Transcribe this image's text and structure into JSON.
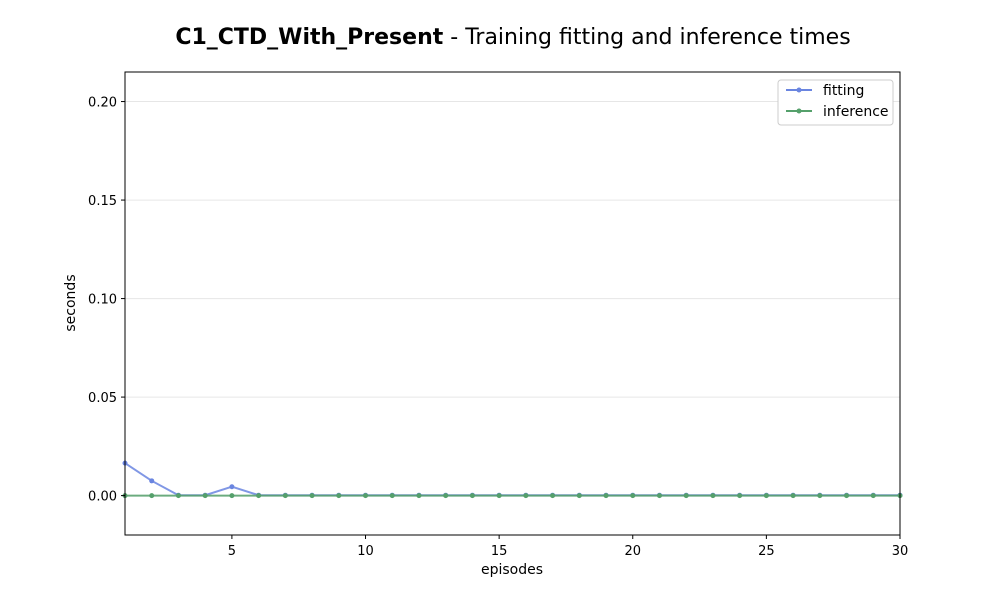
{
  "chart_data": {
    "type": "line",
    "title_bold": "C1_CTD_With_Present",
    "title_rest": " - Training fitting and inference times",
    "xlabel": "episodes",
    "ylabel": "seconds",
    "xlim": [
      1,
      30
    ],
    "ylim": [
      -0.02,
      0.215
    ],
    "xticks": [
      5,
      10,
      15,
      20,
      25,
      30
    ],
    "yticks": [
      0.0,
      0.05,
      0.1,
      0.15,
      0.2
    ],
    "ytick_labels": [
      "0.00",
      "0.05",
      "0.10",
      "0.15",
      "0.20"
    ],
    "grid_y": true,
    "legend_position": "top-right",
    "x": [
      1,
      2,
      3,
      4,
      5,
      6,
      7,
      8,
      9,
      10,
      11,
      12,
      13,
      14,
      15,
      16,
      17,
      18,
      19,
      20,
      21,
      22,
      23,
      24,
      25,
      26,
      27,
      28,
      29,
      30
    ],
    "series": [
      {
        "name": "fitting",
        "color": "#6a85e0",
        "values": [
          0.0165,
          0.0075,
          0.0002,
          0.0002,
          0.0045,
          0.0002,
          0.0002,
          0.0002,
          0.0002,
          0.0002,
          0.0002,
          0.0002,
          0.0002,
          0.0002,
          0.0002,
          0.0002,
          0.0002,
          0.0002,
          0.0002,
          0.0002,
          0.0002,
          0.0002,
          0.0002,
          0.0002,
          0.0002,
          0.0002,
          0.0002,
          0.0002,
          0.0002,
          0.0002
        ]
      },
      {
        "name": "inference",
        "color": "#55a06b",
        "values": [
          0,
          0,
          0,
          0,
          0,
          0,
          0,
          0,
          0,
          0,
          0,
          0,
          0,
          0,
          0,
          0,
          0,
          0,
          0,
          0,
          0,
          0,
          0,
          0,
          0,
          0,
          0,
          0,
          0,
          0
        ]
      }
    ]
  }
}
